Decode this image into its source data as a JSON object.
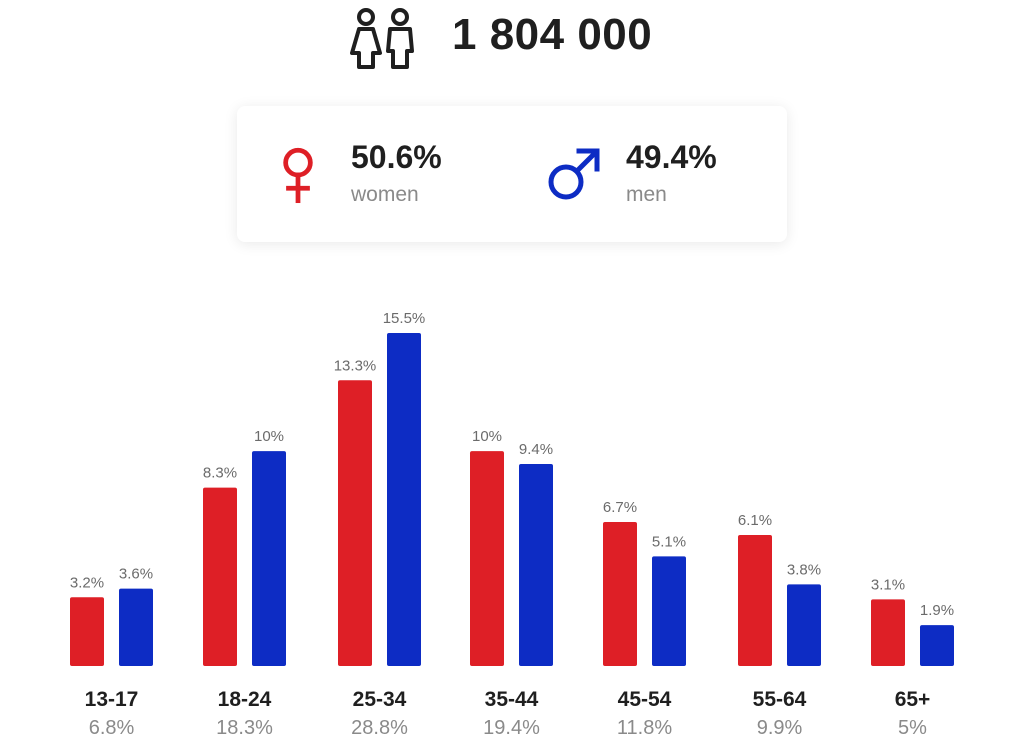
{
  "header": {
    "total": "1 804 000",
    "icon": "people-icon"
  },
  "gender": {
    "women": {
      "pct": "50.6%",
      "label": "women",
      "icon": "female-icon",
      "color": "#de1f26"
    },
    "men": {
      "pct": "49.4%",
      "label": "men",
      "icon": "male-icon",
      "color": "#0d2cc4"
    }
  },
  "chart_data": {
    "type": "bar",
    "categories": [
      "13-17",
      "18-24",
      "25-34",
      "35-44",
      "45-54",
      "55-64",
      "65+"
    ],
    "category_totals": [
      "6.8%",
      "18.3%",
      "28.8%",
      "19.4%",
      "11.8%",
      "9.9%",
      "5%"
    ],
    "series": [
      {
        "values": [
          3.2,
          8.3,
          13.3,
          10,
          6.7,
          6.1,
          3.1
        ],
        "labels": [
          "3.2%",
          "8.3%",
          "13.3%",
          "10%",
          "6.7%",
          "6.1%",
          "3.1%"
        ],
        "color": "#de1f26"
      },
      {
        "values": [
          3.6,
          10,
          15.5,
          9.4,
          5.1,
          3.8,
          1.9
        ],
        "labels": [
          "3.6%",
          "10%",
          "15.5%",
          "9.4%",
          "5.1%",
          "3.8%",
          "1.9%"
        ],
        "color": "#0d2cc4"
      }
    ],
    "ylim": [
      0,
      15.5
    ],
    "grid": false,
    "legend": "none"
  }
}
